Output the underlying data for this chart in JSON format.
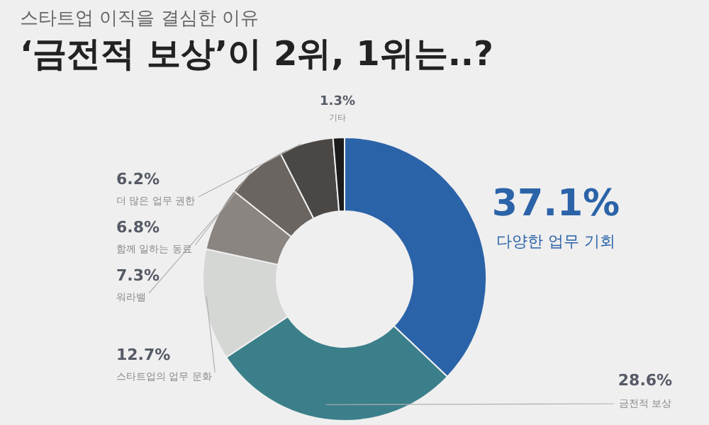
{
  "chart_data": {
    "type": "donut",
    "subtitle": "스타트업 이직을 결심한 이유",
    "title": "‘금전적 보상’이 2위, 1위는..?",
    "categories": [
      "다양한 업무 기회",
      "금전적 보상",
      "스타트업의 업무 문화",
      "워라밸",
      "함께 일하는 동료",
      "더 많은 업무 권한",
      "기타"
    ],
    "values": [
      37.1,
      28.6,
      12.7,
      7.3,
      6.8,
      6.2,
      1.3
    ],
    "value_labels": [
      "37.1%",
      "28.6%",
      "12.7%",
      "7.3%",
      "6.8%",
      "6.2%",
      "1.3%"
    ],
    "colors": [
      "#2b63a8",
      "#3a7f8a",
      "#d5d7d5",
      "#8a8581",
      "#6b6561",
      "#4a4745",
      "#1c1c1c"
    ],
    "legend": false
  }
}
